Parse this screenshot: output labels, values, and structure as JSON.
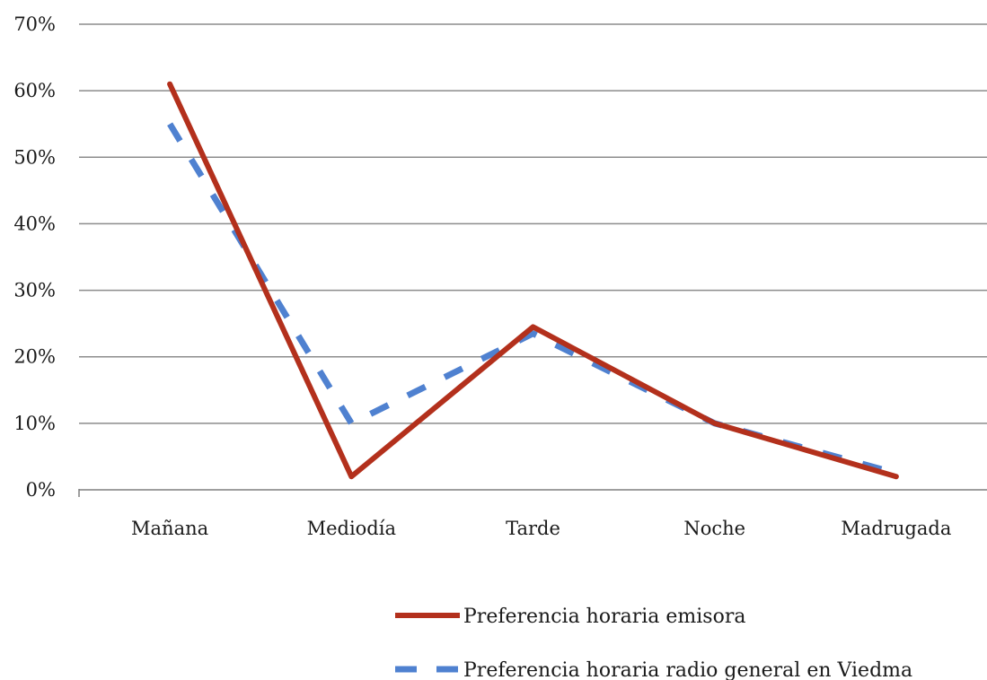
{
  "chart_data": {
    "type": "line",
    "title": "",
    "xlabel": "",
    "ylabel": "",
    "categories": [
      "Mañana",
      "Mediodía",
      "Tarde",
      "Noche",
      "Madrugada"
    ],
    "y_ticks": [
      "0%",
      "10%",
      "20%",
      "30%",
      "40%",
      "50%",
      "60%",
      "70%"
    ],
    "ylim": [
      0,
      70
    ],
    "grid": true,
    "legend_position": "bottom",
    "series": [
      {
        "name": "Preferencia horaria emisora",
        "values": [
          61,
          2,
          24.5,
          10,
          2
        ],
        "color": "#b3301c",
        "style": "solid"
      },
      {
        "name": "Preferencia horaria radio general en Viedma",
        "values": [
          55,
          10,
          23.5,
          10,
          2.5
        ],
        "color": "#4f81d0",
        "style": "dashed"
      }
    ]
  }
}
